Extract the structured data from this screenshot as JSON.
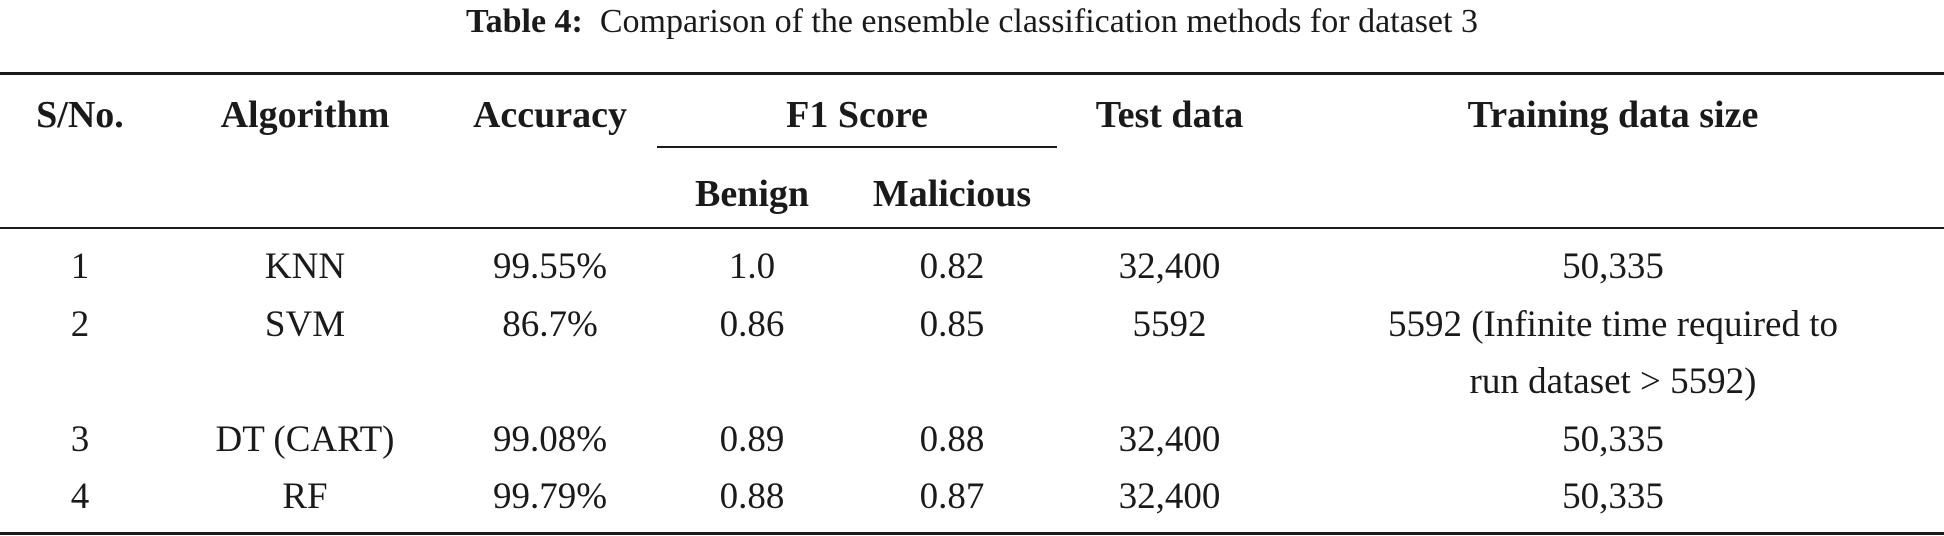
{
  "caption": {
    "label": "Table 4:",
    "text": "Comparison of the ensemble classification methods for dataset 3"
  },
  "table": {
    "headers": {
      "sno": "S/No.",
      "algorithm": "Algorithm",
      "accuracy": "Accuracy",
      "f1_score": "F1 Score",
      "benign": "Benign",
      "malicious": "Malicious",
      "test_data": "Test data",
      "training_data_size": "Training data size"
    },
    "rows": [
      {
        "sno": "1",
        "algorithm": "KNN",
        "accuracy": "99.55%",
        "benign": "1.0",
        "malicious": "0.82",
        "test_data": "32,400",
        "training_line1": "50,335",
        "training_line2": ""
      },
      {
        "sno": "2",
        "algorithm": "SVM",
        "accuracy": "86.7%",
        "benign": "0.86",
        "malicious": "0.85",
        "test_data": "5592",
        "training_line1": "5592 (Infinite time required to",
        "training_line2": "run dataset > 5592)"
      },
      {
        "sno": "3",
        "algorithm": "DT (CART)",
        "accuracy": "99.08%",
        "benign": "0.89",
        "malicious": "0.88",
        "test_data": "32,400",
        "training_line1": "50,335",
        "training_line2": ""
      },
      {
        "sno": "4",
        "algorithm": "RF",
        "accuracy": "99.79%",
        "benign": "0.88",
        "malicious": "0.87",
        "test_data": "32,400",
        "training_line1": "50,335",
        "training_line2": ""
      }
    ]
  }
}
